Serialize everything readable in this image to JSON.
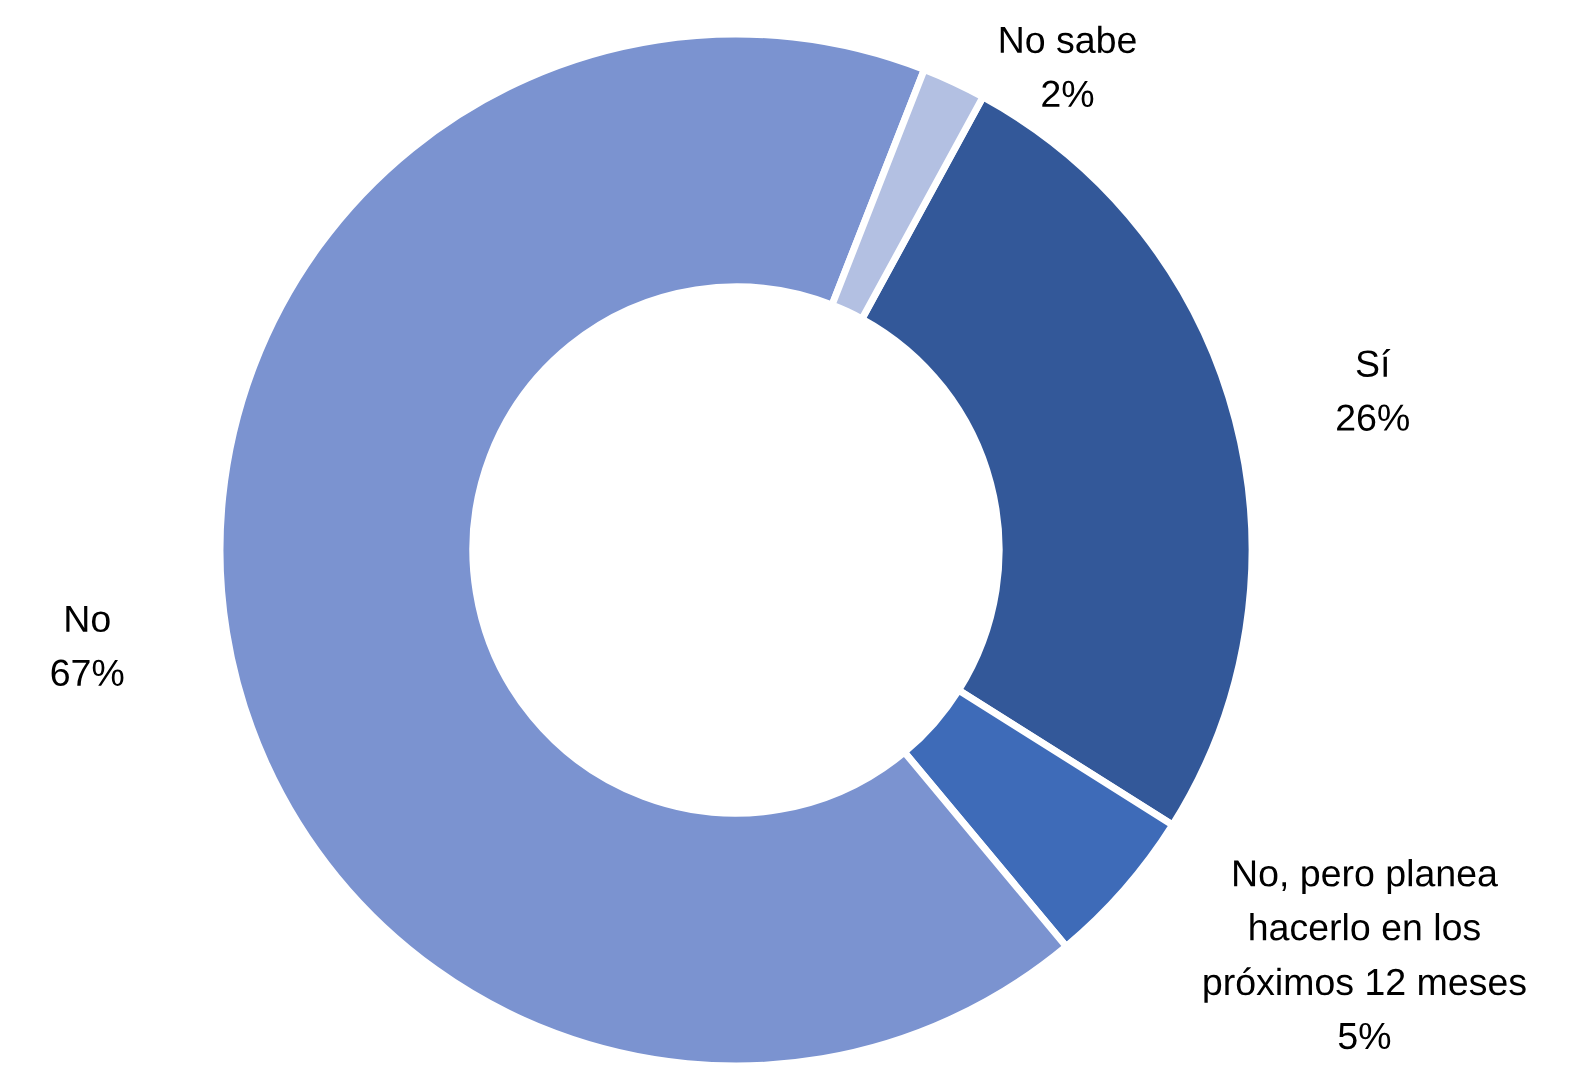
{
  "chart_data": {
    "type": "donut",
    "categories": [
      "Sí",
      "No, pero planea hacerlo en los próximos 12 meses",
      "No",
      "No sabe"
    ],
    "values": [
      26,
      5,
      67,
      2
    ],
    "value_labels": [
      "26%",
      "5%",
      "67%",
      "2%"
    ],
    "colors": [
      "#335899",
      "#3e6bb8",
      "#7b93d0",
      "#b3c0e2"
    ],
    "legend": false
  }
}
